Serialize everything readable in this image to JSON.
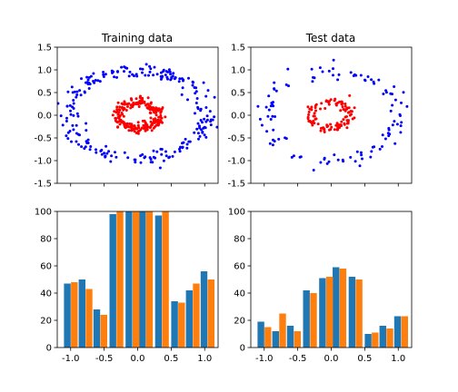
{
  "chart_data": [
    {
      "id": "train-scatter",
      "type": "scatter",
      "title": "Training data",
      "xlim": [
        -1.2,
        1.2
      ],
      "ylim": [
        -1.5,
        1.5
      ],
      "xticks": [
        -1.0,
        -0.5,
        0.0,
        0.5,
        1.0
      ],
      "yticks": [
        "-1.5",
        "-1.0",
        "-0.5",
        "0.0",
        "0.5",
        "1.0",
        "1.5"
      ],
      "show_xtick_labels": false,
      "series": [
        {
          "color": "#0000ff",
          "ring": {
            "radius": 1.0,
            "noise": 0.08,
            "count": 240
          }
        },
        {
          "color": "#ff0000",
          "ring": {
            "radius": 0.3,
            "noise": 0.05,
            "count": 240
          }
        }
      ]
    },
    {
      "id": "test-scatter",
      "type": "scatter",
      "title": "Test data",
      "xlim": [
        -1.2,
        1.2
      ],
      "ylim": [
        -1.5,
        1.5
      ],
      "xticks": [
        -1.0,
        -0.5,
        0.0,
        0.5,
        1.0
      ],
      "yticks": [
        "-1.5",
        "-1.0",
        "-0.5",
        "0.0",
        "0.5",
        "1.0",
        "1.5"
      ],
      "show_xtick_labels": false,
      "series": [
        {
          "color": "#0000ff",
          "ring": {
            "radius": 1.0,
            "noise": 0.08,
            "count": 110
          }
        },
        {
          "color": "#ff0000",
          "ring": {
            "radius": 0.3,
            "noise": 0.05,
            "count": 110
          }
        }
      ]
    },
    {
      "id": "train-hist",
      "type": "bar",
      "title": "",
      "xlim": [
        -1.2,
        1.2
      ],
      "ylim": [
        0,
        100
      ],
      "xticks": [
        "-1.0",
        "-0.5",
        "0.0",
        "0.5",
        "1.0"
      ],
      "yticks": [
        "0",
        "20",
        "40",
        "60",
        "80",
        "100"
      ],
      "bin_edges": [
        -1.05,
        -0.81,
        -0.57,
        -0.33,
        -0.09,
        0.09,
        0.33,
        0.57,
        0.81,
        1.05
      ],
      "bin_left": [
        -1.1,
        -0.88,
        -0.66,
        -0.42,
        -0.18,
        0.02,
        0.26,
        0.5,
        0.72,
        0.94
      ],
      "bin_width": 0.21,
      "series": [
        {
          "color": "#1f77b4",
          "values": [
            47,
            50,
            28,
            98,
            100,
            100,
            97,
            34,
            42,
            56
          ]
        },
        {
          "color": "#ff7f0e",
          "values": [
            48,
            43,
            24,
            100,
            100,
            100,
            100,
            33,
            47,
            50
          ]
        }
      ]
    },
    {
      "id": "test-hist",
      "type": "bar",
      "title": "",
      "xlim": [
        -1.2,
        1.2
      ],
      "ylim": [
        0,
        100
      ],
      "xticks": [
        "-1.0",
        "-0.5",
        "0.0",
        "0.5",
        "1.0"
      ],
      "yticks": [
        "0",
        "20",
        "40",
        "60",
        "80",
        "100"
      ],
      "bin_left": [
        -1.1,
        -0.88,
        -0.66,
        -0.42,
        -0.18,
        0.02,
        0.26,
        0.5,
        0.72,
        0.94
      ],
      "bin_width": 0.21,
      "series": [
        {
          "color": "#1f77b4",
          "values": [
            19,
            12,
            16,
            42,
            51,
            59,
            52,
            10,
            16,
            23
          ]
        },
        {
          "color": "#ff7f0e",
          "values": [
            15,
            25,
            12,
            40,
            52,
            58,
            50,
            11,
            14,
            23
          ]
        }
      ]
    }
  ]
}
